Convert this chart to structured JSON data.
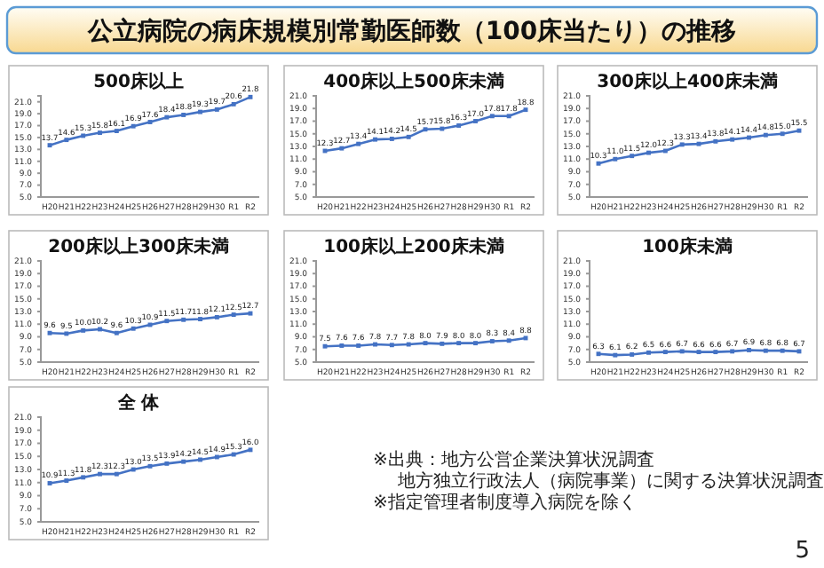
{
  "chart_data": [
    {
      "type": "other",
      "title": "公立病院の病床規模別常勤医師数（100床当たり）の推移",
      "annotations": [
        "※出典：地方公営企業決算状況調査",
        "地方独立行政法人（病院事業）に関する決算状況調査",
        "※指定管理者制度導入病院を除く",
        "5"
      ]
    },
    {
      "type": "line",
      "title": "500床以上",
      "categories": [
        "H20",
        "H21",
        "H22",
        "H23",
        "H24",
        "H25",
        "H26",
        "H27",
        "H28",
        "H29",
        "H30",
        "R1",
        "R2"
      ],
      "series": [
        {
          "color": "#4472c4",
          "values": [
            13.7,
            14.6,
            15.3,
            15.8,
            16.1,
            16.9,
            17.6,
            18.4,
            18.8,
            19.3,
            19.7,
            20.6,
            21.8
          ],
          "value_labels": [
            "13.7",
            "14.6",
            "15.3",
            "15.8",
            "16.1",
            "16.9",
            "17.6",
            "18.4",
            "18.8",
            "19.3",
            "19.7",
            "20.6",
            "21.8"
          ]
        }
      ],
      "ylim": [
        5,
        22
      ],
      "yticks": [
        {
          "value": 5,
          "label": "5.0"
        },
        {
          "value": 7,
          "label": "7.0"
        },
        {
          "value": 9,
          "label": "9.0"
        },
        {
          "value": 11,
          "label": "11.0"
        },
        {
          "value": 13,
          "label": "13.0"
        },
        {
          "value": 15,
          "label": "15.0"
        },
        {
          "value": 17,
          "label": "17.0"
        },
        {
          "value": 19,
          "label": "19.0"
        },
        {
          "value": 21,
          "label": "21.0"
        }
      ],
      "marker": "square"
    },
    {
      "type": "line",
      "title": "400床以上500床未満",
      "categories": [
        "H20",
        "H21",
        "H22",
        "H23",
        "H24",
        "H25",
        "H26",
        "H27",
        "H28",
        "H29",
        "H30",
        "R1",
        "R2"
      ],
      "series": [
        {
          "color": "#4472c4",
          "values": [
            12.3,
            12.7,
            13.4,
            14.1,
            14.2,
            14.5,
            15.7,
            15.8,
            16.3,
            17.0,
            17.8,
            17.8,
            18.8
          ],
          "value_labels": [
            "12.3",
            "12.7",
            "13.4",
            "14.1",
            "14.2",
            "14.5",
            "15.7",
            "15.8",
            "16.3",
            "17.0",
            "17.8",
            "17.8",
            "18.8"
          ]
        }
      ],
      "ylim": [
        5,
        21
      ],
      "yticks": [
        {
          "value": 5,
          "label": "5.0"
        },
        {
          "value": 7,
          "label": "7.0"
        },
        {
          "value": 9,
          "label": "9.0"
        },
        {
          "value": 11,
          "label": "11.0"
        },
        {
          "value": 13,
          "label": "13.0"
        },
        {
          "value": 15,
          "label": "15.0"
        },
        {
          "value": 17,
          "label": "17.0"
        },
        {
          "value": 19,
          "label": "19.0"
        },
        {
          "value": 21,
          "label": "21.0"
        }
      ],
      "marker": "square"
    },
    {
      "type": "line",
      "title": "300床以上400床未満",
      "categories": [
        "H20",
        "H21",
        "H22",
        "H23",
        "H24",
        "H25",
        "H26",
        "H27",
        "H28",
        "H29",
        "H30",
        "R1",
        "R2"
      ],
      "series": [
        {
          "color": "#4472c4",
          "values": [
            10.3,
            11.0,
            11.5,
            12.0,
            12.3,
            13.3,
            13.4,
            13.8,
            14.1,
            14.4,
            14.8,
            15.0,
            15.5
          ],
          "value_labels": [
            "10.3",
            "11.0",
            "11.5",
            "12.0",
            "12.3",
            "13.3",
            "13.4",
            "13.8",
            "14.1",
            "14.4",
            "14.8",
            "15.0",
            "15.5"
          ]
        }
      ],
      "ylim": [
        5,
        21
      ],
      "yticks": [
        {
          "value": 5,
          "label": "5.0"
        },
        {
          "value": 7,
          "label": "7.0"
        },
        {
          "value": 9,
          "label": "9.0"
        },
        {
          "value": 11,
          "label": "11.0"
        },
        {
          "value": 13,
          "label": "13.0"
        },
        {
          "value": 15,
          "label": "15.0"
        },
        {
          "value": 17,
          "label": "17.0"
        },
        {
          "value": 19,
          "label": "19.0"
        },
        {
          "value": 21,
          "label": "21.0"
        }
      ],
      "marker": "square"
    },
    {
      "type": "line",
      "title": "200床以上300床未満",
      "categories": [
        "H20",
        "H21",
        "H22",
        "H23",
        "H24",
        "H25",
        "H26",
        "H27",
        "H28",
        "H29",
        "H30",
        "R1",
        "R2"
      ],
      "series": [
        {
          "color": "#4472c4",
          "values": [
            9.6,
            9.5,
            10.0,
            10.2,
            9.6,
            10.3,
            10.9,
            11.5,
            11.7,
            11.8,
            12.1,
            12.5,
            12.7
          ],
          "value_labels": [
            "9.6",
            "9.5",
            "10.0",
            "10.2",
            "9.6",
            "10.3",
            "10.9",
            "11.5",
            "11.7",
            "11.8",
            "12.1",
            "12.5",
            "12.7"
          ]
        }
      ],
      "ylim": [
        5,
        21
      ],
      "yticks": [
        {
          "value": 5,
          "label": "5.0"
        },
        {
          "value": 7,
          "label": "7.0"
        },
        {
          "value": 9,
          "label": "9.0"
        },
        {
          "value": 11,
          "label": "11.0"
        },
        {
          "value": 13,
          "label": "13.0"
        },
        {
          "value": 15,
          "label": "15.0"
        },
        {
          "value": 17,
          "label": "17.0"
        },
        {
          "value": 19,
          "label": "19.0"
        },
        {
          "value": 21,
          "label": "21.0"
        }
      ],
      "marker": "square"
    },
    {
      "type": "line",
      "title": "100床以上200床未満",
      "categories": [
        "H20",
        "H21",
        "H22",
        "H23",
        "H24",
        "H25",
        "H26",
        "H27",
        "H28",
        "H29",
        "H30",
        "R1",
        "R2"
      ],
      "series": [
        {
          "color": "#4472c4",
          "values": [
            7.5,
            7.6,
            7.6,
            7.8,
            7.7,
            7.8,
            8.0,
            7.9,
            8.0,
            8.0,
            8.3,
            8.4,
            8.8
          ],
          "value_labels": [
            "7.5",
            "7.6",
            "7.6",
            "7.8",
            "7.7",
            "7.8",
            "8.0",
            "7.9",
            "8.0",
            "8.0",
            "8.3",
            "8.4",
            "8.8"
          ]
        }
      ],
      "ylim": [
        5,
        21
      ],
      "yticks": [
        {
          "value": 5,
          "label": "5.0"
        },
        {
          "value": 7,
          "label": "7.0"
        },
        {
          "value": 9,
          "label": "9.0"
        },
        {
          "value": 11,
          "label": "11.0"
        },
        {
          "value": 13,
          "label": "13.0"
        },
        {
          "value": 15,
          "label": "15.0"
        },
        {
          "value": 17,
          "label": "17.0"
        },
        {
          "value": 19,
          "label": "19.0"
        },
        {
          "value": 21,
          "label": "21.0"
        }
      ],
      "marker": "square"
    },
    {
      "type": "line",
      "title": "100床未満",
      "categories": [
        "H20",
        "H21",
        "H22",
        "H23",
        "H24",
        "H25",
        "H26",
        "H27",
        "H28",
        "H29",
        "H30",
        "R1",
        "R2"
      ],
      "series": [
        {
          "color": "#4472c4",
          "values": [
            6.3,
            6.1,
            6.2,
            6.5,
            6.6,
            6.7,
            6.6,
            6.6,
            6.7,
            6.9,
            6.8,
            6.8,
            6.7
          ],
          "value_labels": [
            "6.3",
            "6.1",
            "6.2",
            "6.5",
            "6.6",
            "6.7",
            "6.6",
            "6.6",
            "6.7",
            "6.9",
            "6.8",
            "6.8",
            "6.7"
          ]
        }
      ],
      "ylim": [
        5,
        21
      ],
      "yticks": [
        {
          "value": 5,
          "label": "5.0"
        },
        {
          "value": 7,
          "label": "7.0"
        },
        {
          "value": 9,
          "label": "9.0"
        },
        {
          "value": 11,
          "label": "11.0"
        },
        {
          "value": 13,
          "label": "13.0"
        },
        {
          "value": 15,
          "label": "15.0"
        },
        {
          "value": 17,
          "label": "17.0"
        },
        {
          "value": 19,
          "label": "19.0"
        },
        {
          "value": 21,
          "label": "21.0"
        }
      ],
      "marker": "square"
    },
    {
      "type": "line",
      "title": "全 体",
      "categories": [
        "H20",
        "H21",
        "H22",
        "H23",
        "H24",
        "H25",
        "H26",
        "H27",
        "H28",
        "H29",
        "H30",
        "R1",
        "R2"
      ],
      "series": [
        {
          "color": "#4472c4",
          "values": [
            10.9,
            11.3,
            11.8,
            12.3,
            12.3,
            13.0,
            13.5,
            13.9,
            14.2,
            14.5,
            14.9,
            15.3,
            16.0
          ],
          "value_labels": [
            "10.9",
            "11.3",
            "11.8",
            "12.3",
            "12.3",
            "13.0",
            "13.5",
            "13.9",
            "14.2",
            "14.5",
            "14.9",
            "15.3",
            "16.0"
          ]
        }
      ],
      "ylim": [
        5,
        21
      ],
      "yticks": [
        {
          "value": 5,
          "label": "5.0"
        },
        {
          "value": 7,
          "label": "7.0"
        },
        {
          "value": 9,
          "label": "9.0"
        },
        {
          "value": 11,
          "label": "11.0"
        },
        {
          "value": 13,
          "label": "13.0"
        },
        {
          "value": 15,
          "label": "15.0"
        },
        {
          "value": 17,
          "label": "17.0"
        },
        {
          "value": 19,
          "label": "19.0"
        },
        {
          "value": 21,
          "label": "21.0"
        }
      ],
      "marker": "square"
    }
  ]
}
